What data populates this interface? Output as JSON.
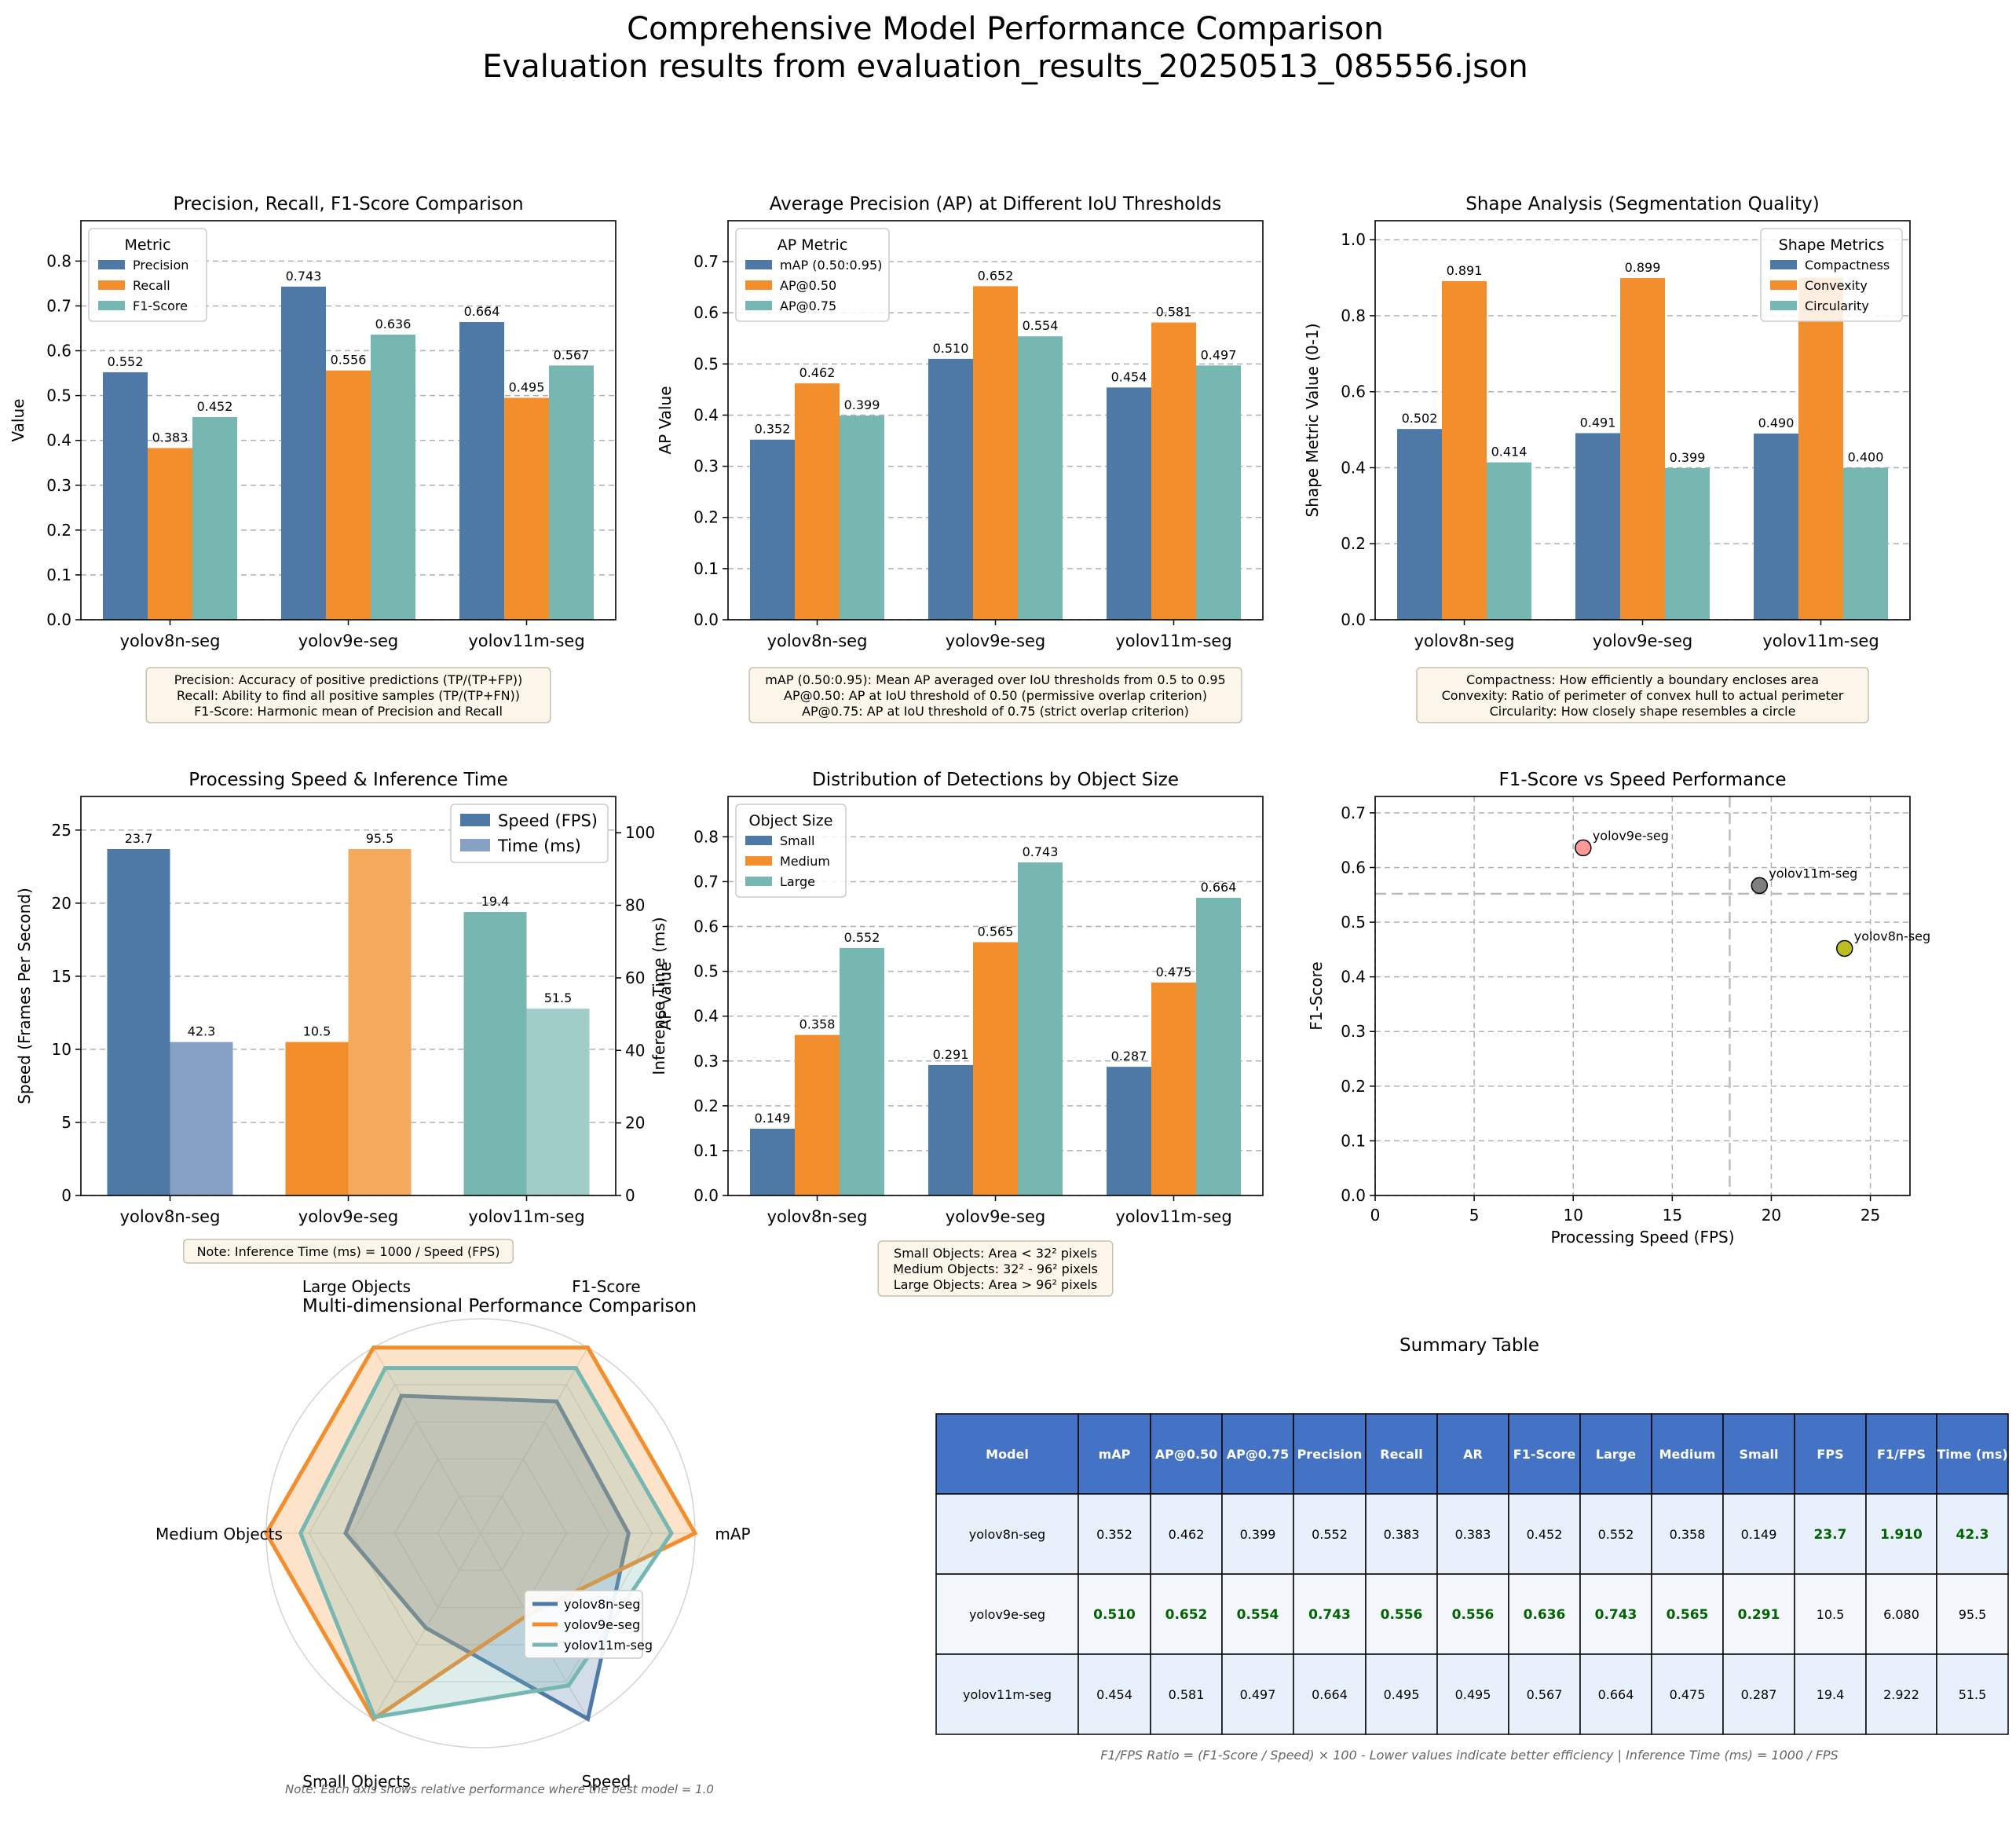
{
  "figure": {
    "title": "Comprehensive Model Performance Comparison",
    "subtitle": "Evaluation results from evaluation_results_20250513_085556.json"
  },
  "colors": {
    "blue": "#4e79a7",
    "orange": "#f28e2b",
    "teal": "#76b7b2",
    "light_blue": "#86a1c4",
    "light_orange": "#f5a95c",
    "light_teal": "#a1cdc9",
    "table_header": "#4472c4",
    "row_a": "#e8f0fb",
    "row_b": "#f3f6fb",
    "best_text": "#006400",
    "scatter_yolov8n": "#bcbd22",
    "scatter_yolov9e": "#ff9896",
    "scatter_yolov11m": "#7f7f7f"
  },
  "chart_data": [
    {
      "id": "prf",
      "type": "bar",
      "title": "Precision, Recall, F1-Score Comparison",
      "xlabel": "",
      "ylabel": "Value",
      "categories": [
        "yolov8n-seg",
        "yolov9e-seg",
        "yolov11m-seg"
      ],
      "series": [
        {
          "name": "Precision",
          "values": [
            0.552,
            0.743,
            0.664
          ]
        },
        {
          "name": "Recall",
          "values": [
            0.383,
            0.556,
            0.495
          ]
        },
        {
          "name": "F1-Score",
          "values": [
            0.452,
            0.636,
            0.567
          ]
        }
      ],
      "ylim": [
        0,
        0.89
      ],
      "yticks": [
        0.0,
        0.1,
        0.2,
        0.3,
        0.4,
        0.5,
        0.6,
        0.7,
        0.8
      ],
      "tick_decimals": 1,
      "legend_title": "Metric",
      "legend_position": "top-left",
      "grid": true,
      "note_lines": [
        "Precision: Accuracy of positive predictions (TP/(TP+FP))",
        "Recall: Ability to find all positive samples (TP/(TP+FN))",
        "F1-Score: Harmonic mean of Precision and Recall"
      ]
    },
    {
      "id": "ap",
      "type": "bar",
      "title": "Average Precision (AP) at Different IoU Thresholds",
      "xlabel": "",
      "ylabel": "AP Value",
      "categories": [
        "yolov8n-seg",
        "yolov9e-seg",
        "yolov11m-seg"
      ],
      "series": [
        {
          "name": "mAP (0.50:0.95)",
          "values": [
            0.352,
            0.51,
            0.454
          ]
        },
        {
          "name": "AP@0.50",
          "values": [
            0.462,
            0.652,
            0.581
          ]
        },
        {
          "name": "AP@0.75",
          "values": [
            0.399,
            0.554,
            0.497
          ]
        }
      ],
      "ylim": [
        0,
        0.78
      ],
      "yticks": [
        0.0,
        0.1,
        0.2,
        0.3,
        0.4,
        0.5,
        0.6,
        0.7
      ],
      "tick_decimals": 1,
      "legend_title": "AP Metric",
      "legend_position": "top-left",
      "grid": true,
      "note_lines": [
        "mAP (0.50:0.95): Mean AP averaged over IoU thresholds from 0.5 to 0.95",
        "AP@0.50: AP at IoU threshold of 0.50 (permissive overlap criterion)",
        "AP@0.75: AP at IoU threshold of 0.75 (strict overlap criterion)"
      ]
    },
    {
      "id": "shape",
      "type": "bar",
      "title": "Shape Analysis (Segmentation Quality)",
      "xlabel": "",
      "ylabel": "Shape Metric Value (0-1)",
      "categories": [
        "yolov8n-seg",
        "yolov9e-seg",
        "yolov11m-seg"
      ],
      "series": [
        {
          "name": "Compactness",
          "values": [
            0.502,
            0.491,
            0.49
          ]
        },
        {
          "name": "Convexity",
          "values": [
            0.891,
            0.899,
            0.9
          ]
        },
        {
          "name": "Circularity",
          "values": [
            0.414,
            0.399,
            0.4
          ]
        }
      ],
      "hidden_labels": [
        [
          2,
          1
        ]
      ],
      "ylim": [
        0,
        1.05
      ],
      "yticks": [
        0.0,
        0.2,
        0.4,
        0.6,
        0.8,
        1.0
      ],
      "tick_decimals": 1,
      "legend_title": "Shape Metrics",
      "legend_position": "top-right",
      "grid": true,
      "note_lines": [
        "Compactness: How efficiently a boundary encloses area",
        "Convexity: Ratio of perimeter of convex hull to actual perimeter",
        "Circularity: How closely shape resembles a circle"
      ]
    },
    {
      "id": "speed",
      "type": "bar",
      "title": "Processing Speed & Inference Time",
      "xlabel": "",
      "ylabel": "Speed (Frames Per Second)",
      "y2label": "Inference Time (ms)",
      "categories": [
        "yolov8n-seg",
        "yolov9e-seg",
        "yolov11m-seg"
      ],
      "series": [
        {
          "name": "Speed (FPS)",
          "values": [
            23.7,
            10.5,
            19.4
          ],
          "axis": "left"
        },
        {
          "name": "Time (ms)",
          "values": [
            42.3,
            95.5,
            51.5
          ],
          "axis": "right"
        }
      ],
      "ylim": [
        0,
        27.3
      ],
      "yticks": [
        0,
        5,
        10,
        15,
        20,
        25
      ],
      "y2lim": [
        0,
        110
      ],
      "y2ticks": [
        0,
        20,
        40,
        60,
        80,
        100
      ],
      "legend_position": "top-right",
      "grid": true,
      "note_lines": [
        "Note: Inference Time (ms) = 1000 / Speed (FPS)"
      ]
    },
    {
      "id": "size",
      "type": "bar",
      "title": "Distribution of Detections by Object Size",
      "xlabel": "",
      "ylabel": "AP Value",
      "categories": [
        "yolov8n-seg",
        "yolov9e-seg",
        "yolov11m-seg"
      ],
      "series": [
        {
          "name": "Small",
          "values": [
            0.149,
            0.291,
            0.287
          ]
        },
        {
          "name": "Medium",
          "values": [
            0.358,
            0.565,
            0.475
          ]
        },
        {
          "name": "Large",
          "values": [
            0.552,
            0.743,
            0.664
          ]
        }
      ],
      "ylim": [
        0,
        0.89
      ],
      "yticks": [
        0.0,
        0.1,
        0.2,
        0.3,
        0.4,
        0.5,
        0.6,
        0.7,
        0.8
      ],
      "tick_decimals": 1,
      "legend_title": "Object Size",
      "legend_position": "top-left",
      "grid": true,
      "note_lines": [
        "Small Objects: Area < 32² pixels",
        "Medium Objects: 32² - 96² pixels",
        "Large Objects: Area > 96² pixels"
      ]
    },
    {
      "id": "scatter",
      "type": "scatter",
      "title": "F1-Score vs Speed Performance",
      "xlabel": "Processing Speed (FPS)",
      "ylabel": "F1-Score",
      "points": [
        {
          "label": "yolov9e-seg",
          "x": 10.5,
          "y": 0.636
        },
        {
          "label": "yolov11m-seg",
          "x": 19.4,
          "y": 0.567
        },
        {
          "label": "yolov8n-seg",
          "x": 23.7,
          "y": 0.452
        }
      ],
      "xlim": [
        0,
        27
      ],
      "ylim": [
        0,
        0.73
      ],
      "xticks": [
        0,
        5,
        10,
        15,
        20,
        25
      ],
      "yticks": [
        0.0,
        0.1,
        0.2,
        0.3,
        0.4,
        0.5,
        0.6,
        0.7
      ],
      "tick_decimals": 1,
      "reference_lines": {
        "x": 17.9,
        "y": 0.552
      },
      "grid": true
    },
    {
      "id": "radar",
      "type": "radar",
      "title": "Multi-dimensional Performance Comparison",
      "axes": [
        "mAP",
        "F1-Score",
        "Large Objects",
        "Medium Objects",
        "Small Objects",
        "Speed"
      ],
      "series": [
        {
          "name": "yolov8n-seg",
          "values": [
            0.69,
            0.71,
            0.74,
            0.63,
            0.51,
            1.0
          ]
        },
        {
          "name": "yolov9e-seg",
          "values": [
            1.0,
            1.0,
            1.0,
            1.0,
            1.0,
            0.44
          ]
        },
        {
          "name": "yolov11m-seg",
          "values": [
            0.89,
            0.89,
            0.89,
            0.84,
            0.99,
            0.82
          ]
        }
      ],
      "rmax": 1.0,
      "legend_position": "lower-right",
      "note": "Note: Each axis shows relative performance where the best model = 1.0"
    }
  ],
  "summary_table": {
    "title": "Summary Table",
    "headers": [
      "Model",
      "mAP",
      "AP@0.50",
      "AP@0.75",
      "Precision",
      "Recall",
      "AR",
      "F1-Score",
      "Large",
      "Medium",
      "Small",
      "FPS",
      "F1/FPS",
      "Time (ms)"
    ],
    "rows": [
      [
        "yolov8n-seg",
        "0.352",
        "0.462",
        "0.399",
        "0.552",
        "0.383",
        "0.383",
        "0.452",
        "0.552",
        "0.358",
        "0.149",
        "23.7",
        "1.910",
        "42.3"
      ],
      [
        "yolov9e-seg",
        "0.510",
        "0.652",
        "0.554",
        "0.743",
        "0.556",
        "0.556",
        "0.636",
        "0.743",
        "0.565",
        "0.291",
        "10.5",
        "6.080",
        "95.5"
      ],
      [
        "yolov11m-seg",
        "0.454",
        "0.581",
        "0.497",
        "0.664",
        "0.495",
        "0.495",
        "0.567",
        "0.664",
        "0.475",
        "0.287",
        "19.4",
        "2.922",
        "51.5"
      ]
    ],
    "best": [
      [
        false,
        false,
        false,
        false,
        false,
        false,
        false,
        false,
        false,
        false,
        false,
        true,
        true,
        true
      ],
      [
        false,
        true,
        true,
        true,
        true,
        true,
        true,
        true,
        true,
        true,
        true,
        false,
        false,
        false
      ],
      [
        false,
        false,
        false,
        false,
        false,
        false,
        false,
        false,
        false,
        false,
        false,
        false,
        false,
        false
      ]
    ],
    "footnote": "F1/FPS Ratio = (F1-Score / Speed) × 100 - Lower values indicate better efficiency | Inference Time (ms) = 1000 / FPS"
  }
}
